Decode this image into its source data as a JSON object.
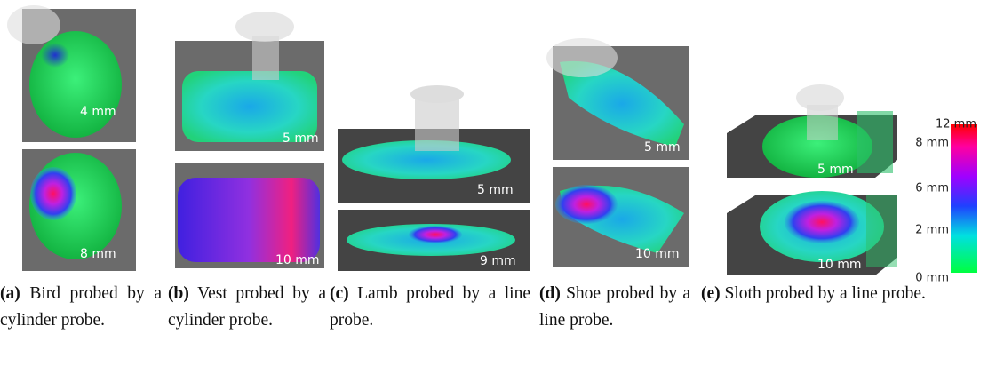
{
  "panels": [
    {
      "label": "(a)",
      "caption": "Bird probed by a cylinder probe.",
      "depths": [
        "4 mm",
        "8 mm"
      ]
    },
    {
      "label": "(b)",
      "caption": "Vest probed by a cylinder probe.",
      "depths": [
        "5 mm",
        "10 mm"
      ]
    },
    {
      "label": "(c)",
      "caption": "Lamb probed by a line probe.",
      "depths": [
        "5 mm",
        "9 mm"
      ]
    },
    {
      "label": "(d)",
      "caption": "Shoe probed by a line probe.",
      "depths": [
        "5 mm",
        "10 mm"
      ]
    },
    {
      "label": "(e)",
      "caption": "Sloth probed by a line probe.",
      "depths": [
        "5 mm",
        "10 mm"
      ]
    }
  ],
  "colorbar": {
    "ticks": [
      "12 mm",
      "8 mm",
      "6 mm",
      "2 mm",
      "0 mm"
    ]
  }
}
